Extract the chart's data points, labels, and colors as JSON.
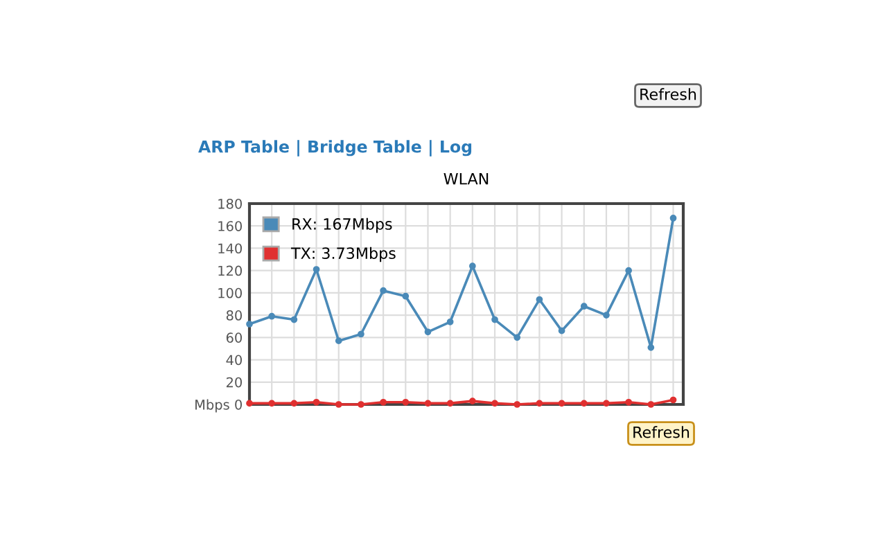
{
  "chart_data": {
    "type": "line",
    "title": "WLAN",
    "categories": [
      null,
      null,
      null,
      null,
      null,
      null,
      null,
      null,
      null,
      null,
      null,
      null,
      null,
      null,
      null,
      null,
      null,
      null,
      null,
      null
    ],
    "series": [
      {
        "name": "RX: 167Mbps",
        "color": "#4a8ab8",
        "values": [
          72,
          79,
          76,
          121,
          57,
          63,
          102,
          97,
          65,
          74,
          124,
          76,
          60,
          94,
          66,
          88,
          80,
          120,
          51,
          167
        ]
      },
      {
        "name": "TX: 3.73Mbps",
        "color": "#e03030",
        "values": [
          1,
          1,
          1,
          2,
          0,
          0,
          2,
          2,
          1,
          1,
          3,
          1,
          0,
          1,
          1,
          1,
          1,
          2,
          0,
          4
        ]
      }
    ],
    "ylim": [
      0,
      180
    ],
    "yticks": [
      {
        "value": 0,
        "label": "Mbps 0"
      },
      20,
      40,
      60,
      80,
      100,
      120,
      140,
      160,
      180
    ],
    "grid": true,
    "legend": "top left",
    "marker": "circle",
    "line_style": "solid",
    "tick_labels": "y",
    "annotations": [
      "Refresh",
      "ARP Table | Bridge Table | Log",
      "Refresh"
    ]
  }
}
